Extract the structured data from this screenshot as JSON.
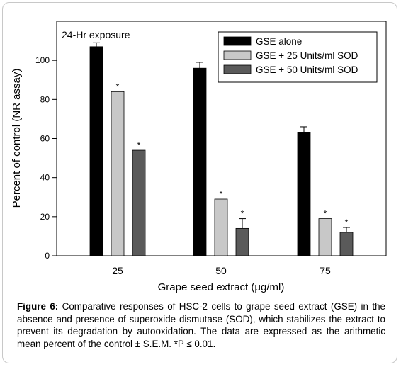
{
  "chart_data": {
    "type": "bar",
    "annotation": "24-Hr exposure",
    "xlabel": "Grape seed extract (μg/ml)",
    "ylabel": "Percent of control (NR assay)",
    "categories": [
      "25",
      "50",
      "75"
    ],
    "ylim": [
      0,
      120
    ],
    "yticks": [
      0,
      20,
      40,
      60,
      80,
      100
    ],
    "significance_marker": "*",
    "legend_position": "top-right",
    "series": [
      {
        "name": "GSE alone",
        "color": "#000000",
        "values": [
          107,
          96,
          63
        ],
        "errors": [
          2,
          3,
          3
        ],
        "significant": [
          false,
          false,
          false
        ]
      },
      {
        "name": "GSE + 25 Units/ml SOD",
        "color": "#c8c8c8",
        "values": [
          84,
          29,
          19
        ],
        "errors": [
          0,
          0,
          0
        ],
        "significant": [
          true,
          true,
          true
        ]
      },
      {
        "name": "GSE + 50 Units/ml SOD",
        "color": "#5a5a5a",
        "values": [
          54,
          14,
          12
        ],
        "errors": [
          0,
          5,
          2.5
        ],
        "significant": [
          true,
          true,
          true
        ]
      }
    ]
  },
  "caption": {
    "label": "Figure 6:",
    "text": "Comparative responses of HSC-2 cells to grape seed extract (GSE) in the absence and presence of superoxide dismutase (SOD), which stabilizes the extract to prevent its degradation by autooxidation.  The data are expressed as the arithmetic mean percent of the control ± S.E.M. *P ≤ 0.01."
  }
}
